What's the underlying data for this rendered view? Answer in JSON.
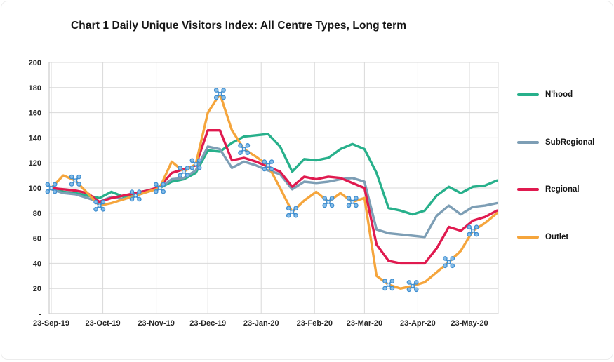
{
  "title": "Chart 1 Daily Unique Visitors Index: All Centre Types, Long term",
  "chart_data": {
    "type": "line",
    "title": "Chart 1 Daily Unique Visitors Index: All Centre Types, Long term",
    "xlabel": "",
    "ylabel": "",
    "ylim": [
      0,
      200
    ],
    "grid": true,
    "legend_position": "right",
    "gridline_color": "#d9d9d9",
    "axis_line_color": "#c0c0c0",
    "tick_label_color": "#262626",
    "x": [
      "23-Sep-19",
      "30-Sep-19",
      "07-Oct-19",
      "14-Oct-19",
      "21-Oct-19",
      "28-Oct-19",
      "04-Nov-19",
      "11-Nov-19",
      "18-Nov-19",
      "25-Nov-19",
      "02-Dec-19",
      "09-Dec-19",
      "16-Dec-19",
      "23-Dec-19",
      "30-Dec-19",
      "06-Jan-20",
      "13-Jan-20",
      "20-Jan-20",
      "27-Jan-20",
      "03-Feb-20",
      "10-Feb-20",
      "17-Feb-20",
      "24-Feb-20",
      "02-Mar-20",
      "09-Mar-20",
      "16-Mar-20",
      "23-Mar-20",
      "30-Mar-20",
      "06-Apr-20",
      "13-Apr-20",
      "20-Apr-20",
      "27-Apr-20",
      "04-May-20",
      "11-May-20",
      "18-May-20",
      "25-May-20",
      "01-Jun-20",
      "08-Jun-20"
    ],
    "series": [
      {
        "name": "N'hood",
        "color": "#27b08b",
        "values": [
          100,
          97,
          96,
          94,
          92,
          97,
          93,
          96,
          98,
          100,
          105,
          107,
          112,
          130,
          129,
          136,
          141,
          142,
          143,
          133,
          113,
          123,
          122,
          124,
          131,
          135,
          131,
          112,
          84,
          82,
          79,
          82,
          94,
          101,
          96,
          101,
          102,
          106
        ]
      },
      {
        "name": "SubRegional",
        "color": "#7d9eb5",
        "values": [
          99,
          96,
          95,
          92,
          89,
          93,
          91,
          94,
          97,
          100,
          107,
          108,
          114,
          133,
          131,
          116,
          121,
          118,
          114,
          111,
          99,
          105,
          104,
          105,
          107,
          108,
          105,
          67,
          64,
          63,
          62,
          61,
          78,
          86,
          79,
          85,
          86,
          88
        ]
      },
      {
        "name": "Regional",
        "color": "#e01a4f",
        "values": [
          100,
          99,
          98,
          96,
          89,
          92,
          94,
          96,
          98,
          101,
          112,
          115,
          118,
          146,
          146,
          122,
          124,
          121,
          117,
          113,
          101,
          109,
          107,
          109,
          108,
          104,
          100,
          55,
          42,
          40,
          40,
          40,
          52,
          69,
          66,
          74,
          77,
          82
        ]
      },
      {
        "name": "Outlet",
        "color": "#f5a53c",
        "values": [
          100,
          110,
          106,
          96,
          86,
          88,
          91,
          94,
          97,
          100,
          121,
          113,
          119,
          160,
          175,
          146,
          131,
          125,
          118,
          100,
          81,
          90,
          97,
          89,
          96,
          89,
          92,
          30,
          23,
          20,
          22,
          25,
          33,
          41,
          50,
          66,
          72,
          80
        ],
        "marker_indices": [
          0,
          2,
          4,
          7,
          9,
          11,
          12,
          14,
          16,
          18,
          20,
          23,
          25,
          28,
          30,
          33,
          35
        ],
        "marker_color": "#3e8ed0",
        "marker_fill": "#85bce8",
        "marker_center_fill": "#d8eaf8"
      }
    ],
    "x_ticks": [
      {
        "label": "23-Sep-19",
        "day": 0
      },
      {
        "label": "23-Oct-19",
        "day": 30
      },
      {
        "label": "23-Nov-19",
        "day": 61
      },
      {
        "label": "23-Dec-19",
        "day": 91
      },
      {
        "label": "23-Jan-20",
        "day": 122
      },
      {
        "label": "23-Feb-20",
        "day": 153
      },
      {
        "label": "23-Mar-20",
        "day": 182
      },
      {
        "label": "23-Apr-20",
        "day": 213
      },
      {
        "label": "23-May-20",
        "day": 243
      }
    ],
    "y_ticks": [
      {
        "label": "200",
        "value": 200
      },
      {
        "label": "180",
        "value": 180
      },
      {
        "label": "160",
        "value": 160
      },
      {
        "label": "140",
        "value": 140
      },
      {
        "label": "120",
        "value": 120
      },
      {
        "label": "100",
        "value": 100
      },
      {
        "label": "80",
        "value": 80
      },
      {
        "label": "60",
        "value": 60
      },
      {
        "label": "40",
        "value": 40
      },
      {
        "label": "20",
        "value": 20
      },
      {
        "label": "-",
        "value": 0
      }
    ]
  }
}
